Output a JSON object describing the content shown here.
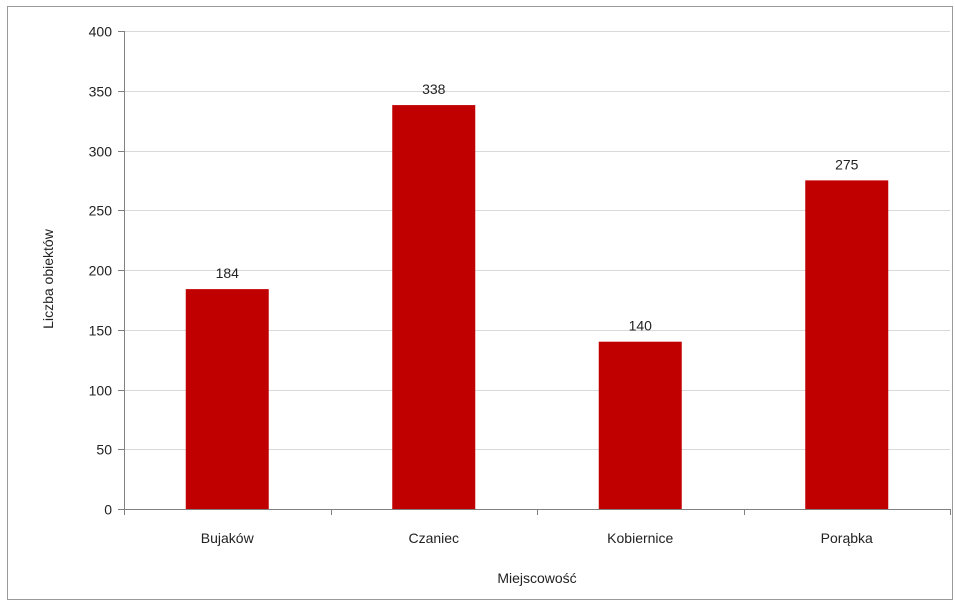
{
  "chart_data": {
    "type": "bar",
    "categories": [
      "Bujaków",
      "Czaniec",
      "Kobiernice",
      "Porąbka"
    ],
    "values": [
      184,
      338,
      140,
      275
    ],
    "data_labels": [
      "184",
      "338",
      "140",
      "275"
    ],
    "y_ticks": [
      0,
      50,
      100,
      150,
      200,
      250,
      300,
      350,
      400
    ],
    "ylim": [
      0,
      400
    ],
    "xlabel": "Miejscowość",
    "ylabel": "Liczba obiektów",
    "grid": true,
    "legend": "none",
    "colors": {
      "bar": "#c00000",
      "grid": "#d9d9d9",
      "axis": "#808080"
    }
  }
}
